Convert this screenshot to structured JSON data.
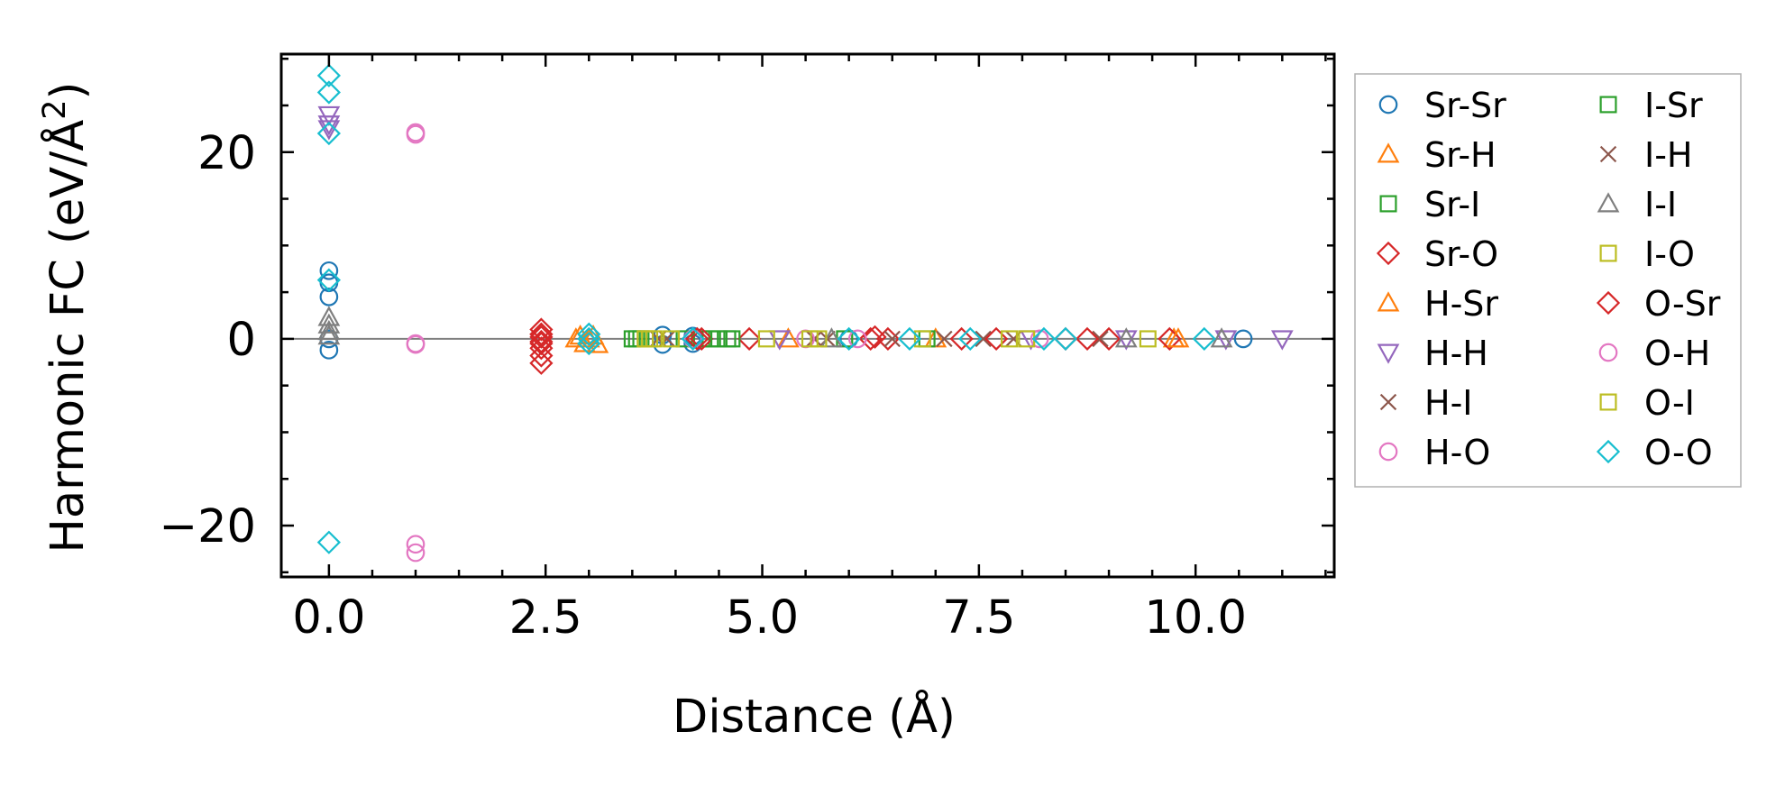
{
  "chart_data": {
    "type": "scatter",
    "xlabel": "Distance (Å)",
    "ylabel_main": "Harmonic FC (eV/Å",
    "ylabel_sup": "2",
    "ylabel_end": ")",
    "xlim": [
      -0.55,
      11.6
    ],
    "ylim": [
      -25.5,
      30.5
    ],
    "xticks": [
      0.0,
      2.5,
      5.0,
      7.5,
      10.0
    ],
    "xtick_labels": [
      "0.0",
      "2.5",
      "5.0",
      "7.5",
      "10.0"
    ],
    "yticks": [
      -20,
      0,
      20
    ],
    "ytick_labels": [
      "−20",
      "0",
      "20"
    ],
    "legend_placement": "outside right",
    "series": [
      {
        "name": "Sr-Sr",
        "marker": "circle",
        "color": "#1f77b4",
        "x": [
          0,
          0,
          0,
          0,
          0,
          3.85,
          3.85,
          4.2,
          4.2,
          6.0,
          10.55
        ],
        "y": [
          7.3,
          6.0,
          4.5,
          0.0,
          -1.2,
          0.4,
          -0.6,
          0.3,
          -0.5,
          0.0,
          0.0
        ]
      },
      {
        "name": "Sr-H",
        "marker": "triangle-up",
        "color": "#ff7f0e",
        "x": [
          2.85,
          2.95,
          3.05,
          3.1,
          5.3,
          7.0,
          9.75
        ],
        "y": [
          0.0,
          -0.5,
          0.3,
          -0.6,
          0.0,
          0.0,
          0.0
        ]
      },
      {
        "name": "Sr-I",
        "marker": "square",
        "color": "#2ca02c",
        "x": [
          3.5,
          3.6,
          4.1,
          4.3,
          4.4,
          4.6,
          5.95,
          6.9
        ],
        "y": [
          0.0,
          0.0,
          0.0,
          0.0,
          0.0,
          0.0,
          0.0,
          0.0
        ]
      },
      {
        "name": "Sr-O",
        "marker": "diamond",
        "color": "#d62728",
        "x": [
          2.45,
          2.45,
          2.45,
          2.45,
          2.45,
          2.45,
          2.45,
          4.3,
          4.85,
          6.3,
          6.45,
          7.3,
          8.5,
          9.0,
          9.7
        ],
        "y": [
          1.0,
          0.2,
          -0.5,
          -1.0,
          -1.8,
          -2.6,
          0.5,
          0.0,
          0.0,
          0.2,
          0.0,
          0.0,
          0.0,
          0.0,
          0.0
        ]
      },
      {
        "name": "H-Sr",
        "marker": "triangle-up",
        "color": "#ff7f0e",
        "x": [
          2.9,
          3.0,
          9.8
        ],
        "y": [
          0.3,
          0.0,
          0.0
        ]
      },
      {
        "name": "H-H",
        "marker": "triangle-down",
        "color": "#9467bd",
        "x": [
          0,
          0,
          0,
          5.2,
          8.1,
          9.2,
          10.35,
          11.0
        ],
        "y": [
          24.0,
          23.0,
          22.5,
          0.0,
          0.0,
          0.0,
          0.0,
          0.0
        ]
      },
      {
        "name": "H-I",
        "marker": "x",
        "color": "#8c564b",
        "x": [
          3.8,
          5.6,
          6.5,
          7.1,
          7.9,
          8.9
        ],
        "y": [
          0.0,
          0.0,
          0.0,
          0.0,
          0.0,
          0.0
        ]
      },
      {
        "name": "H-O",
        "marker": "circle",
        "color": "#e377c2",
        "x": [
          1.0,
          1.0,
          1.0,
          1.0,
          4.2,
          5.5,
          8.2
        ],
        "y": [
          22.1,
          -0.6,
          -22.0,
          -22.9,
          0.0,
          0.0,
          0.0
        ]
      },
      {
        "name": "I-Sr",
        "marker": "square",
        "color": "#2ca02c",
        "x": [
          3.55,
          4.5,
          4.65
        ],
        "y": [
          0.0,
          0.0,
          0.0
        ]
      },
      {
        "name": "I-H",
        "marker": "x",
        "color": "#8c564b",
        "x": [
          3.9,
          5.75,
          7.55
        ],
        "y": [
          0.0,
          0.0,
          0.0
        ]
      },
      {
        "name": "I-I",
        "marker": "triangle-up",
        "color": "#7f7f7f",
        "x": [
          0,
          0,
          0,
          0,
          5.8,
          9.2,
          10.3
        ],
        "y": [
          2.3,
          1.5,
          0.8,
          0.3,
          0.0,
          0.0,
          0.0
        ]
      },
      {
        "name": "I-O",
        "marker": "square",
        "color": "#bcbd22",
        "x": [
          3.65,
          3.75,
          3.95,
          5.05,
          5.65,
          6.85,
          8.05,
          9.45
        ],
        "y": [
          0.0,
          0.0,
          0.0,
          0.0,
          0.0,
          0.0,
          0.0,
          0.0
        ]
      },
      {
        "name": "O-Sr",
        "marker": "diamond",
        "color": "#d62728",
        "x": [
          2.45,
          2.45,
          4.25,
          6.25,
          7.7,
          8.75
        ],
        "y": [
          0.5,
          -0.3,
          0.0,
          0.0,
          0.0,
          0.0
        ]
      },
      {
        "name": "O-H",
        "marker": "circle",
        "color": "#e377c2",
        "x": [
          1.0,
          1.0,
          6.1
        ],
        "y": [
          21.9,
          -0.5,
          0.0
        ]
      },
      {
        "name": "O-I",
        "marker": "square",
        "color": "#bcbd22",
        "x": [
          3.7,
          5.55,
          7.85
        ],
        "y": [
          0.0,
          0.0,
          0.0
        ]
      },
      {
        "name": "O-O",
        "marker": "diamond",
        "color": "#17becf",
        "x": [
          0,
          0,
          0,
          0,
          0,
          3.0,
          3.0,
          3.0,
          4.2,
          6.0,
          6.7,
          7.4,
          8.25,
          8.5,
          10.1
        ],
        "y": [
          28.2,
          26.4,
          22.0,
          6.3,
          -21.8,
          0.5,
          0.0,
          -0.5,
          0.0,
          0.0,
          0.0,
          0.0,
          0.0,
          0.0,
          0.0
        ]
      }
    ]
  }
}
